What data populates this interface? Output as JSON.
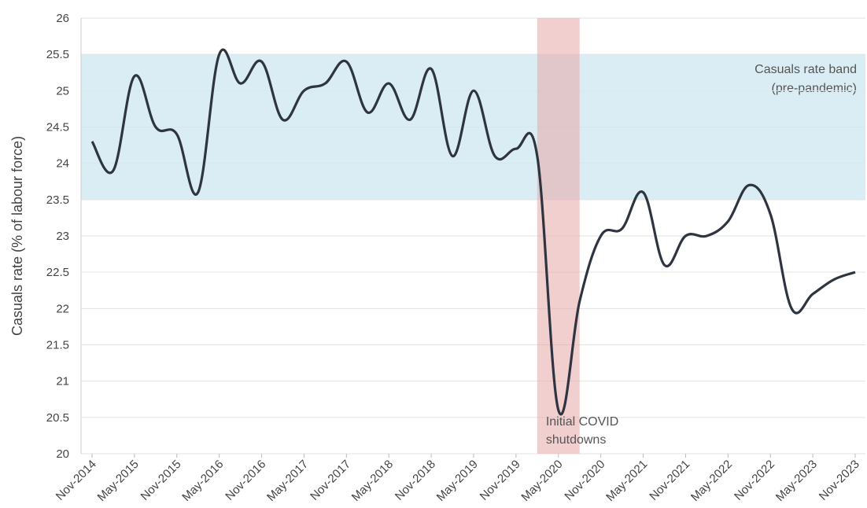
{
  "chart_data": {
    "type": "line",
    "y_label": "Casuals rate (% of labour force)",
    "categories": [
      "Nov-2014",
      null,
      "May-2015",
      null,
      "Nov-2015",
      null,
      "May-2016",
      null,
      "Nov-2016",
      null,
      "May-2017",
      null,
      "Nov-2017",
      null,
      "May-2018",
      null,
      "Nov-2018",
      null,
      "May-2019",
      null,
      "Nov-2019",
      null,
      "May-2020",
      null,
      "Nov-2020",
      null,
      "May-2021",
      null,
      "Nov-2021",
      null,
      "May-2022",
      null,
      "Nov-2022",
      null,
      "May-2023",
      null,
      "Nov-2023"
    ],
    "series": [
      {
        "color": "#2e3440",
        "values": [
          24.3,
          23.9,
          25.2,
          24.5,
          24.4,
          23.6,
          25.5,
          25.1,
          25.4,
          24.6,
          25.0,
          25.1,
          25.4,
          24.7,
          25.1,
          24.6,
          25.3,
          24.1,
          25.0,
          24.1,
          24.2,
          24.1,
          20.6,
          22.1,
          23.0,
          23.1,
          23.6,
          22.6,
          23.0,
          23.0,
          23.2,
          23.7,
          23.3,
          22.0,
          22.2,
          22.4,
          22.5
        ]
      }
    ],
    "ylim": [
      20,
      26
    ],
    "yticks": [
      20,
      20.5,
      21,
      21.5,
      22,
      22.5,
      23,
      23.5,
      24,
      24.5,
      25,
      25.5,
      26
    ],
    "grid": true,
    "y_band": {
      "range": [
        23.5,
        25.5
      ],
      "color": "#add8e6",
      "label_lines": [
        "Casuals rate band",
        "(pre-pandemic)"
      ]
    },
    "x_band": {
      "range": [
        21,
        23
      ],
      "color": "#e8a8a8",
      "label_lines": [
        "Initial COVID",
        "shutdowns"
      ]
    }
  }
}
